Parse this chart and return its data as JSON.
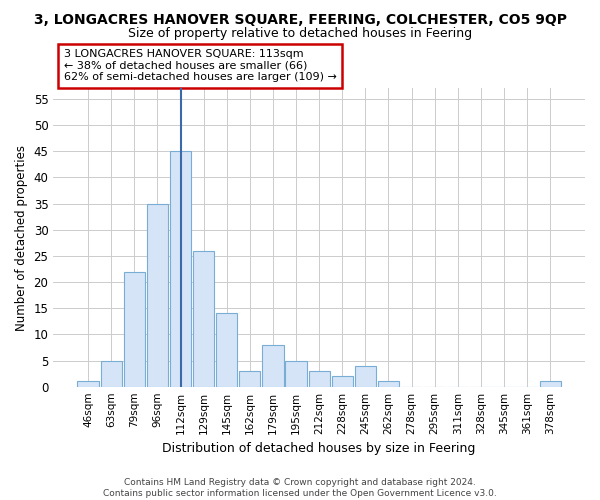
{
  "title": "3, LONGACRES HANOVER SQUARE, FEERING, COLCHESTER, CO5 9QP",
  "subtitle": "Size of property relative to detached houses in Feering",
  "xlabel": "Distribution of detached houses by size in Feering",
  "ylabel": "Number of detached properties",
  "bar_labels": [
    "46sqm",
    "63sqm",
    "79sqm",
    "96sqm",
    "112sqm",
    "129sqm",
    "145sqm",
    "162sqm",
    "179sqm",
    "195sqm",
    "212sqm",
    "228sqm",
    "245sqm",
    "262sqm",
    "278sqm",
    "295sqm",
    "311sqm",
    "328sqm",
    "345sqm",
    "361sqm",
    "378sqm"
  ],
  "bar_values": [
    1,
    5,
    22,
    35,
    45,
    26,
    14,
    3,
    8,
    5,
    3,
    2,
    4,
    1,
    0,
    0,
    0,
    0,
    0,
    0,
    1
  ],
  "bar_color": "#d6e4f7",
  "bar_edge_color": "#7aadd4",
  "vline_color": "#3a6ba8",
  "vline_index": 4,
  "ylim": [
    0,
    57
  ],
  "yticks": [
    0,
    5,
    10,
    15,
    20,
    25,
    30,
    35,
    40,
    45,
    50,
    55
  ],
  "annotation_title": "3 LONGACRES HANOVER SQUARE: 113sqm",
  "annotation_line1": "← 38% of detached houses are smaller (66)",
  "annotation_line2": "62% of semi-detached houses are larger (109) →",
  "annotation_box_color": "#ffffff",
  "annotation_box_edge": "#cc0000",
  "footer_line1": "Contains HM Land Registry data © Crown copyright and database right 2024.",
  "footer_line2": "Contains public sector information licensed under the Open Government Licence v3.0.",
  "grid_color": "#cccccc",
  "background_color": "#ffffff",
  "title_fontsize": 10,
  "subtitle_fontsize": 9
}
